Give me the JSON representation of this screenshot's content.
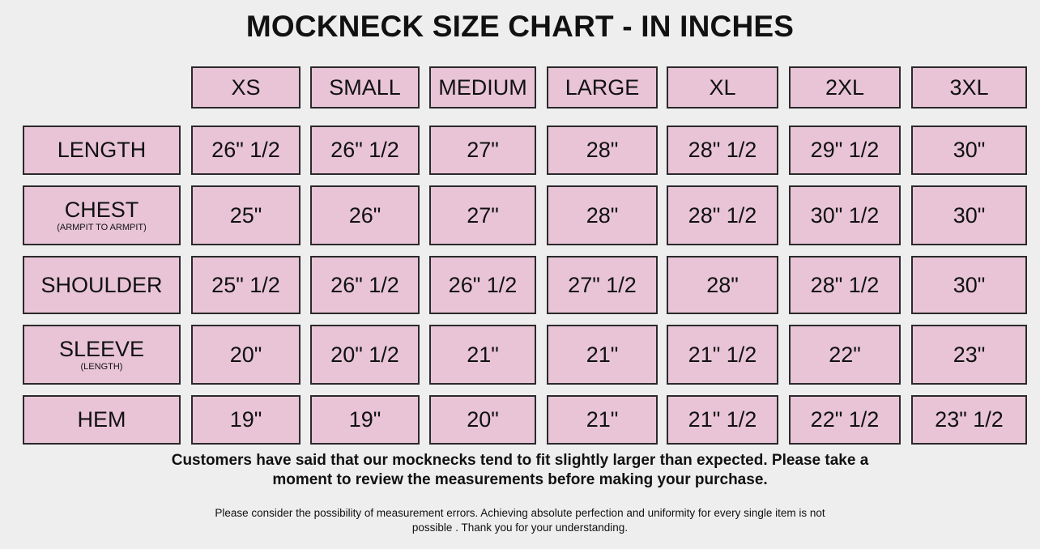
{
  "title": "MOCKNECK SIZE CHART - IN INCHES",
  "sizes": [
    "XS",
    "SMALL",
    "MEDIUM",
    "LARGE",
    "XL",
    "2XL",
    "3XL"
  ],
  "rows": [
    {
      "label": "LENGTH",
      "sublabel": "",
      "values": [
        "26\" 1/2",
        "26\" 1/2",
        "27\"",
        "28\"",
        "28\" 1/2",
        "29\" 1/2",
        "30\""
      ]
    },
    {
      "label": "CHEST",
      "sublabel": "(ARMPIT TO ARMPIT)",
      "values": [
        "25\"",
        "26\"",
        "27\"",
        "28\"",
        "28\" 1/2",
        "30\" 1/2",
        "30\""
      ]
    },
    {
      "label": "SHOULDER",
      "sublabel": "",
      "values": [
        "25\" 1/2",
        "26\" 1/2",
        "26\" 1/2",
        "27\" 1/2",
        "28\"",
        "28\" 1/2",
        "30\""
      ]
    },
    {
      "label": "SLEEVE",
      "sublabel": "(LENGTH)",
      "values": [
        "20\"",
        "20\" 1/2",
        "21\"",
        "21\"",
        "21\" 1/2",
        "22\"",
        "23\""
      ]
    },
    {
      "label": "HEM",
      "sublabel": "",
      "values": [
        "19\"",
        "19\"",
        "20\"",
        "21\"",
        "21\" 1/2",
        "22\" 1/2",
        "23\" 1/2"
      ]
    }
  ],
  "notice": {
    "line1": "Customers have said that our mocknecks tend to fit slightly larger than expected. Please take a",
    "line2": "moment to review the measurements before making your purchase."
  },
  "disclaimer": {
    "line1": "Please consider the possibility of measurement errors. Achieving absolute perfection and uniformity for every single item is not",
    "line2": "possible . Thank you for your understanding."
  },
  "colors": {
    "cell_fill": "#e8c4d6",
    "border": "#2a2a2a",
    "background": "#eeeeee"
  }
}
